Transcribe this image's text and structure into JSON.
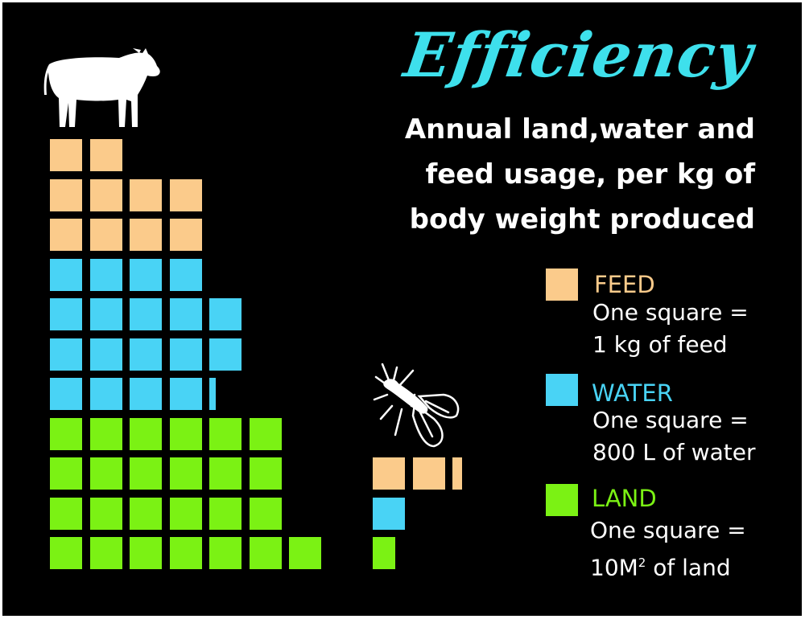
{
  "colors": {
    "background": "#000000",
    "title": "#3ee0ec",
    "feed": "#fbcb8b",
    "water": "#49d3f5",
    "land": "#7bf214",
    "text": "#ffffff"
  },
  "header": {
    "title": "Efficiency",
    "subtitle_lines": [
      "Annual land,water and",
      "feed usage, per kg of",
      "body weight produced"
    ]
  },
  "legend": {
    "feed": {
      "name": "FEED",
      "line1": "One square =",
      "line2": "1 kg of feed"
    },
    "water": {
      "name": "WATER",
      "line1": "One square =",
      "line2": "800 L of water"
    },
    "land": {
      "name": "LAND",
      "line1": "One square =",
      "line2_prefix": "10M",
      "line2_sup": "2",
      "line2_suffix": " of land"
    }
  },
  "icons": {
    "cow": "cow-silhouette-icon",
    "insect": "fly-silhouette-icon"
  },
  "cow": {
    "feed_squares": 10,
    "water_squares": 18.2,
    "land_squares": 25
  },
  "insect": {
    "feed_squares": 2.3,
    "water_squares": 1,
    "land_squares": 0.7
  }
}
